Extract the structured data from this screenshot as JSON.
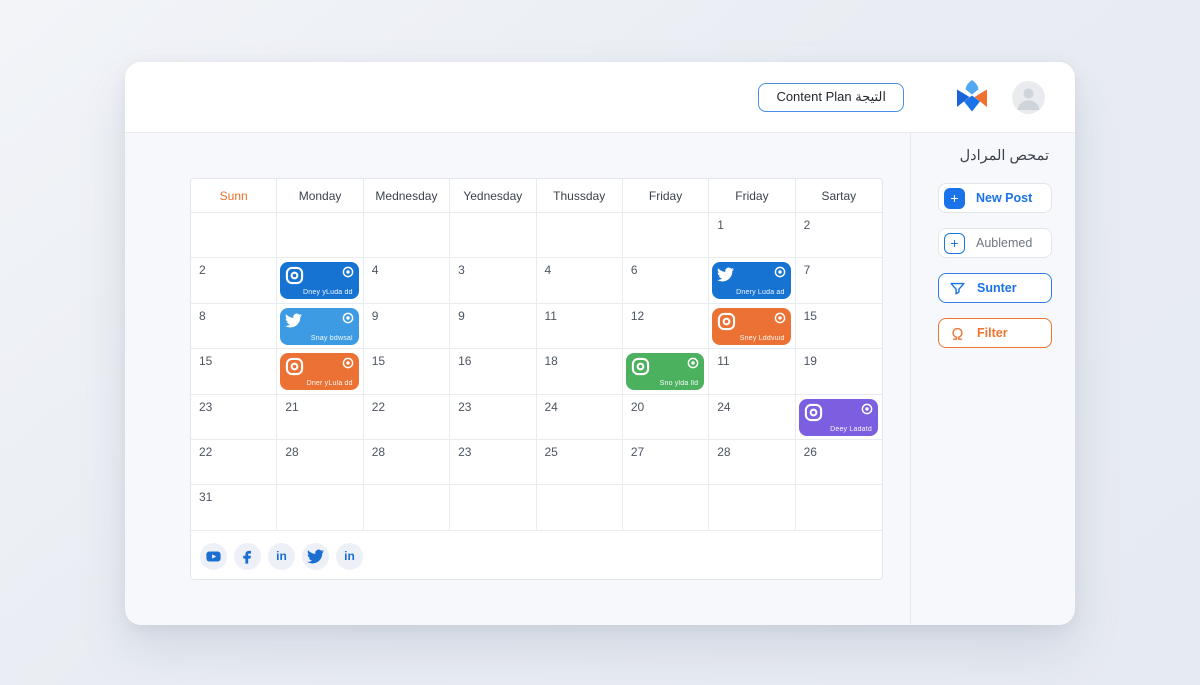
{
  "header": {
    "content_plan_label": "Content Plan التيجة"
  },
  "sidebar": {
    "title_ar": "تمحص المرادل",
    "buttons": {
      "new_post": "New Post",
      "aublemed": "Aublemed",
      "sunter": "Sunter",
      "filter": "Filter"
    }
  },
  "calendar": {
    "day_headers": [
      "Sunn",
      "Monday",
      "Mednesday",
      "Yednesday",
      "Thussday",
      "Friday",
      "Friday",
      "Sartay"
    ],
    "rows": [
      [
        null,
        null,
        null,
        null,
        null,
        null,
        {
          "n": "1"
        },
        {
          "n": "2"
        }
      ],
      [
        {
          "n": "2"
        },
        {
          "event": {
            "platform": "instagram",
            "color": "#1673d2",
            "label": "Dney yLuda dd"
          }
        },
        {
          "n": "4"
        },
        {
          "n": "3"
        },
        {
          "n": "4"
        },
        {
          "n": "6"
        },
        {
          "event": {
            "platform": "twitter",
            "color": "#1673d2",
            "label": "Dnery Luda ad"
          }
        },
        {
          "n": "7"
        }
      ],
      [
        {
          "n": "8"
        },
        {
          "event": {
            "platform": "twitter",
            "color": "#3d9be4",
            "label": "Snay bdwsal"
          }
        },
        {
          "n": "9"
        },
        {
          "n": "9"
        },
        {
          "n": "11"
        },
        {
          "n": "12"
        },
        {
          "event": {
            "platform": "instagram",
            "color": "#ec7134",
            "label": "Sney Lddvuid"
          }
        },
        {
          "n": "15"
        }
      ],
      [
        {
          "n": "15"
        },
        {
          "event": {
            "platform": "instagram",
            "color": "#ec7134",
            "label": "Dner yLula dd"
          }
        },
        {
          "n": "15"
        },
        {
          "n": "16"
        },
        {
          "n": "18"
        },
        {
          "event": {
            "platform": "instagram",
            "color": "#4cb15f",
            "label": "Sno ylda lld"
          }
        },
        {
          "n": "11"
        },
        {
          "n": "19"
        }
      ],
      [
        {
          "n": "23"
        },
        {
          "n": "21"
        },
        {
          "n": "22"
        },
        {
          "n": "23"
        },
        {
          "n": "24"
        },
        {
          "n": "20"
        },
        {
          "n": "24"
        },
        {
          "event": {
            "platform": "instagram",
            "color": "#7b5fe0",
            "label": "Deey Ladatd"
          }
        }
      ],
      [
        {
          "n": "22"
        },
        {
          "n": "28"
        },
        {
          "n": "28"
        },
        {
          "n": "23"
        },
        {
          "n": "25"
        },
        {
          "n": "27"
        },
        {
          "n": "28"
        },
        {
          "n": "26"
        }
      ],
      [
        {
          "n": "31"
        },
        null,
        null,
        null,
        null,
        null,
        null,
        null
      ]
    ],
    "footer_icons": [
      "youtube-icon",
      "facebook-icon",
      "linkedin-icon",
      "twitter-icon",
      "linkedin-icon"
    ]
  },
  "colors": {
    "accent_blue": "#1a73e8",
    "accent_orange": "#ee7433",
    "chip_blue": "#1673d2",
    "chip_lightblue": "#3d9be4",
    "chip_orange": "#ec7134",
    "chip_green": "#4cb15f",
    "chip_purple": "#7b5fe0",
    "sunday_header": "#e8702a"
  }
}
